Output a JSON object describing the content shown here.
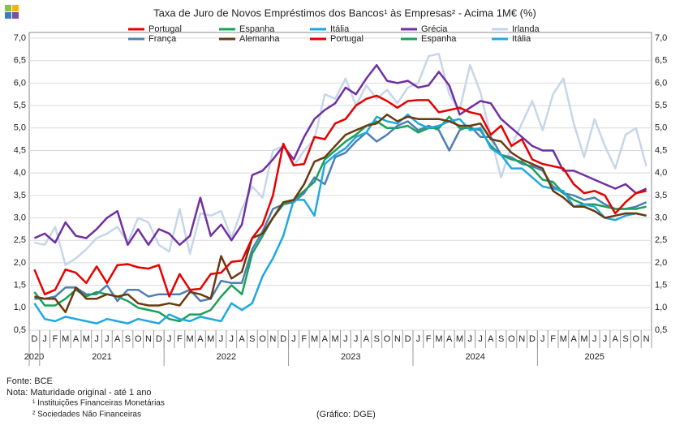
{
  "chart_data": {
    "type": "line",
    "title": "Taxa de Juro de Novos Empréstimos dos Bancos¹ às Empresas² - Acima 1M€ (%)",
    "categories": [
      "D",
      "J",
      "F",
      "M",
      "A",
      "M",
      "J",
      "J",
      "A",
      "S",
      "O",
      "N",
      "D",
      "J",
      "F",
      "M",
      "A",
      "M",
      "J",
      "J",
      "A",
      "S",
      "O",
      "N",
      "D",
      "J",
      "F",
      "M",
      "A",
      "M",
      "J",
      "J",
      "A",
      "S",
      "O",
      "N",
      "D",
      "J",
      "F",
      "M",
      "A",
      "M",
      "J",
      "J",
      "A",
      "S",
      "O",
      "N",
      "D",
      "J",
      "F",
      "M",
      "A",
      "M",
      "J",
      "J",
      "A",
      "S",
      "O",
      "N"
    ],
    "years": [
      "2020",
      "2021",
      "2022",
      "2023",
      "2024",
      "2025"
    ],
    "ylim": [
      0.5,
      7.0
    ],
    "yticks": [
      {
        "value": 0.5,
        "label": "0,5"
      },
      {
        "value": 1.0,
        "label": "1,0"
      },
      {
        "value": 1.5,
        "label": "1,5"
      },
      {
        "value": 2.0,
        "label": "2,0"
      },
      {
        "value": 2.5,
        "label": "2,5"
      },
      {
        "value": 3.0,
        "label": "3,0"
      },
      {
        "value": 3.5,
        "label": "3,5"
      },
      {
        "value": 4.0,
        "label": "4,0"
      },
      {
        "value": 4.5,
        "label": "4,5"
      },
      {
        "value": 5.0,
        "label": "5,0"
      },
      {
        "value": 5.5,
        "label": "5,5"
      },
      {
        "value": 6.0,
        "label": "6,0"
      },
      {
        "value": 6.5,
        "label": "6,5"
      },
      {
        "value": 7.0,
        "label": "7,0"
      }
    ],
    "grid": true,
    "series": [
      {
        "name": "Irlanda",
        "color": "#c6d6ea",
        "values": [
          2.45,
          2.4,
          2.8,
          1.95,
          2.1,
          2.3,
          2.55,
          2.65,
          2.8,
          2.45,
          3.0,
          2.9,
          2.4,
          2.25,
          3.2,
          2.2,
          3.1,
          3.05,
          3.15,
          2.55,
          3.2,
          3.7,
          3.45,
          4.5,
          4.6,
          4.15,
          4.5,
          4.75,
          5.75,
          5.65,
          6.1,
          5.5,
          5.95,
          5.65,
          5.85,
          5.55,
          5.9,
          6.0,
          6.6,
          6.65,
          5.75,
          5.4,
          6.4,
          5.8,
          4.8,
          3.9,
          4.6,
          5.1,
          5.6,
          4.95,
          5.75,
          6.1,
          5.1,
          4.35,
          5.2,
          4.6,
          4.1,
          4.85,
          5.0,
          4.15
        ]
      },
      {
        "name": "Grécia",
        "color": "#7030a0",
        "values": [
          2.55,
          2.65,
          2.45,
          2.9,
          2.6,
          2.55,
          2.75,
          3.0,
          3.15,
          2.4,
          2.75,
          2.4,
          2.75,
          2.65,
          2.4,
          2.6,
          3.45,
          2.6,
          2.85,
          2.5,
          2.85,
          3.95,
          4.05,
          4.3,
          4.6,
          4.3,
          4.8,
          5.2,
          5.4,
          5.55,
          5.9,
          5.75,
          6.1,
          6.4,
          6.05,
          6.0,
          6.05,
          5.9,
          5.95,
          6.25,
          5.95,
          5.3,
          5.45,
          5.6,
          5.55,
          5.2,
          5.0,
          4.8,
          4.6,
          4.5,
          4.5,
          4.05,
          4.05,
          3.95,
          3.85,
          3.75,
          3.65,
          3.75,
          3.55,
          3.65
        ]
      },
      {
        "name": "França",
        "color": "#4f7fb5",
        "values": [
          1.2,
          1.2,
          1.25,
          1.45,
          1.45,
          1.3,
          1.3,
          1.5,
          1.15,
          1.4,
          1.4,
          1.25,
          1.3,
          1.3,
          1.3,
          1.4,
          1.15,
          1.2,
          1.6,
          1.55,
          1.55,
          2.3,
          2.7,
          3.2,
          3.3,
          3.35,
          3.55,
          3.9,
          3.75,
          4.35,
          4.45,
          4.7,
          4.9,
          4.7,
          4.85,
          5.05,
          5.15,
          4.95,
          5.05,
          4.95,
          4.5,
          4.95,
          5.05,
          4.8,
          4.8,
          4.4,
          4.35,
          4.2,
          4.15,
          4.05,
          3.7,
          3.55,
          3.5,
          3.4,
          3.45,
          3.3,
          3.2,
          3.2,
          3.25,
          3.35
        ]
      },
      {
        "name": "Espanha",
        "color": "#1aa05a",
        "values": [
          1.35,
          1.05,
          1.05,
          1.2,
          1.4,
          1.25,
          1.35,
          1.3,
          1.25,
          1.15,
          1.0,
          0.95,
          0.9,
          0.75,
          0.7,
          0.85,
          0.85,
          0.95,
          1.25,
          1.5,
          1.3,
          2.2,
          2.6,
          3.0,
          3.3,
          3.4,
          3.6,
          3.8,
          4.3,
          4.5,
          4.7,
          4.85,
          5.05,
          5.15,
          5.0,
          5.0,
          5.05,
          4.9,
          5.0,
          5.0,
          5.25,
          5.0,
          5.0,
          4.95,
          4.6,
          4.4,
          4.3,
          4.25,
          4.1,
          3.85,
          3.8,
          3.55,
          3.4,
          3.3,
          3.3,
          3.25,
          3.2,
          3.2,
          3.2,
          3.25
        ]
      },
      {
        "name": "Itália",
        "color": "#1fa8e0",
        "values": [
          1.1,
          0.75,
          0.7,
          0.8,
          0.75,
          0.7,
          0.65,
          0.75,
          0.7,
          0.65,
          0.75,
          0.7,
          0.65,
          0.85,
          0.75,
          0.7,
          0.8,
          0.75,
          0.7,
          1.1,
          0.95,
          1.1,
          1.7,
          2.1,
          2.6,
          3.4,
          3.4,
          3.05,
          4.2,
          4.4,
          4.55,
          4.8,
          4.9,
          5.25,
          5.15,
          5.1,
          5.3,
          5.1,
          5.0,
          5.05,
          5.15,
          5.2,
          4.95,
          5.0,
          4.55,
          4.4,
          4.1,
          4.1,
          3.9,
          3.7,
          3.65,
          3.6,
          3.25,
          3.3,
          3.25,
          3.0,
          2.95,
          3.05,
          3.1,
          3.05
        ]
      },
      {
        "name": "Alemanha",
        "color": "#6b3a10",
        "values": [
          1.25,
          1.2,
          1.2,
          0.9,
          1.45,
          1.2,
          1.2,
          1.3,
          1.25,
          1.3,
          1.1,
          1.05,
          1.05,
          1.1,
          1.05,
          1.35,
          1.3,
          1.2,
          2.15,
          1.65,
          1.8,
          2.55,
          2.65,
          3.0,
          3.35,
          3.4,
          3.75,
          4.25,
          4.35,
          4.6,
          4.85,
          4.95,
          5.05,
          5.1,
          5.3,
          5.15,
          5.25,
          5.2,
          5.2,
          5.2,
          5.15,
          5.05,
          5.05,
          5.1,
          4.75,
          4.7,
          4.45,
          4.3,
          4.2,
          4.1,
          3.6,
          3.45,
          3.25,
          3.25,
          3.15,
          3.0,
          3.05,
          3.1,
          3.1,
          3.05
        ]
      },
      {
        "name": "Portugal",
        "color": "#e60000",
        "values": [
          1.85,
          1.3,
          1.4,
          1.85,
          1.78,
          1.55,
          1.92,
          1.55,
          1.95,
          1.97,
          1.9,
          1.87,
          1.95,
          1.25,
          1.75,
          1.4,
          1.42,
          1.75,
          1.78,
          2.02,
          2.05,
          2.55,
          2.85,
          3.5,
          4.65,
          4.17,
          4.2,
          4.8,
          4.75,
          5.1,
          5.2,
          5.5,
          5.65,
          5.72,
          5.6,
          5.45,
          5.6,
          5.62,
          5.62,
          5.35,
          5.4,
          5.45,
          5.35,
          5.3,
          4.85,
          5.05,
          4.6,
          4.75,
          4.3,
          4.2,
          4.15,
          4.1,
          3.75,
          3.55,
          3.6,
          3.5,
          3.1,
          3.35,
          3.55,
          3.6
        ]
      }
    ],
    "legend": [
      "Portugal",
      "Espanha",
      "Itália",
      "Grécia",
      "Irlanda",
      "França",
      "Alemanha",
      "Portugal",
      "Espanha",
      "Itália"
    ],
    "notes": [
      "Fonte: BCE",
      "Nota: Maturidade original - até 1 ano",
      "¹ Instituições Financeiras Monetárias",
      "² Sociedades Não Financeiras"
    ],
    "credit": "(Gráfico: DGE)"
  }
}
